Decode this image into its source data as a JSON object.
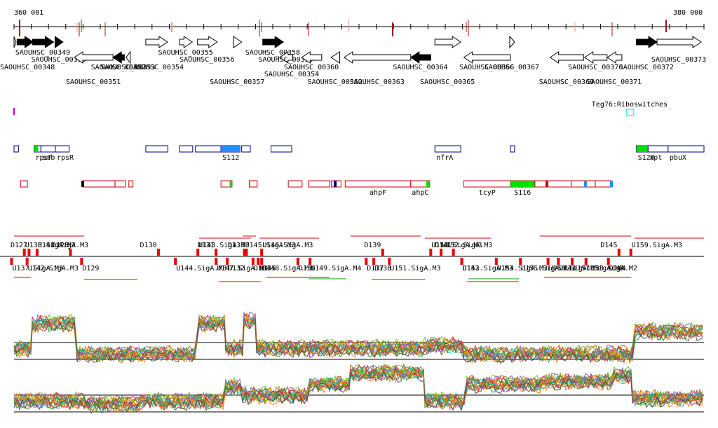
{
  "coords": {
    "start_label": "360 001",
    "end_label": "380 000",
    "start": 360001,
    "end": 380000
  },
  "colors": {
    "axis": "#000000",
    "gene_arrow": "#000000",
    "feature_box": "#000080",
    "red_box": "#cc0000",
    "green": "#00dd00",
    "blue": "#1e90ff",
    "cyan": "#00e5e5",
    "magenta": "#cc00cc"
  },
  "genes": [
    {
      "id": "g1",
      "label": "",
      "s": 360001,
      "e": 360060,
      "strand": "+",
      "filled": false,
      "row": 0
    },
    {
      "id": "g2",
      "label": "SAOUHSC_00348",
      "s": 360090,
      "e": 360560,
      "strand": "+",
      "filled": true,
      "row": 0,
      "label_row": 2
    },
    {
      "id": "g3",
      "label": "SAOUHSC_00349",
      "s": 360540,
      "e": 361150,
      "strand": "+",
      "filled": true,
      "row": 0,
      "label_row": 0
    },
    {
      "id": "g4",
      "label": "SAOUHSC_00350",
      "s": 361190,
      "e": 361420,
      "strand": "+",
      "filled": true,
      "row": 0,
      "label_row": 1
    },
    {
      "id": "g5",
      "label": "SAOUHSC_00351",
      "s": 361750,
      "e": 362870,
      "strand": "-",
      "filled": false,
      "row": 1,
      "label_row": 3
    },
    {
      "id": "g6",
      "label": "SAOUHSC_00352",
      "s": 362870,
      "e": 363200,
      "strand": "-",
      "filled": true,
      "row": 1,
      "label_row": 2
    },
    {
      "id": "g7",
      "label": "SAOUHSC_00353",
      "s": 363250,
      "e": 363370,
      "strand": "-",
      "filled": false,
      "row": 1,
      "label_row": 2
    },
    {
      "id": "g8",
      "label": "SAOUHSC_00354",
      "s": 363820,
      "e": 364450,
      "strand": "+",
      "filled": false,
      "row": 0,
      "label_row": 2
    },
    {
      "id": "g9",
      "label": "SAOUHSC_00355",
      "s": 364800,
      "e": 365170,
      "strand": "+",
      "filled": false,
      "row": 0,
      "label_row": 0
    },
    {
      "id": "g10",
      "label": "SAOUHSC_00356",
      "s": 365320,
      "e": 365890,
      "strand": "+",
      "filled": false,
      "row": 0,
      "label_row": 1
    },
    {
      "id": "g11",
      "label": "SAOUHSC_00357",
      "s": 366360,
      "e": 366600,
      "strand": "+",
      "filled": false,
      "row": 0,
      "label_row": 3
    },
    {
      "id": "g12",
      "label": "SAOUHSC_00358",
      "s": 367210,
      "e": 367810,
      "strand": "+",
      "filled": true,
      "row": 0,
      "label_row": 0
    },
    {
      "id": "g13",
      "label": "SAOUHSC_00359",
      "s": 367700,
      "e": 368080,
      "strand": "-",
      "filled": false,
      "row": 1,
      "label_row": 1
    },
    {
      "id": "g14",
      "label": "SAOUHSC_00360",
      "s": 368340,
      "e": 368920,
      "strand": "-",
      "filled": false,
      "row": 1,
      "label_row": 2
    },
    {
      "id": "g15",
      "label": "SAOUHSC_00362",
      "s": 369190,
      "e": 369440,
      "strand": "-",
      "filled": false,
      "row": 1,
      "label_row": 3
    },
    {
      "id": "g16",
      "label": "SAOUHSC_00363",
      "s": 369570,
      "e": 371500,
      "strand": "-",
      "filled": false,
      "row": 1,
      "label_row": 4
    },
    {
      "id": "g17",
      "label": "SAOUHSC_00364",
      "s": 371500,
      "e": 372080,
      "strand": "-",
      "filled": true,
      "row": 1,
      "label_row": 2
    },
    {
      "id": "g18",
      "label": "SAOUHSC_00365",
      "s": 372200,
      "e": 372950,
      "strand": "+",
      "filled": false,
      "row": 0,
      "label_row": 3
    },
    {
      "id": "g19",
      "label": "SAOUHSC_00366",
      "s": 373040,
      "e": 374390,
      "strand": "-",
      "filled": false,
      "row": 1,
      "label_row": 2
    },
    {
      "id": "g20",
      "label": "SAOUHSC_00367",
      "s": 374370,
      "e": 374510,
      "strand": "+",
      "filled": false,
      "row": 0,
      "label_row": 2
    },
    {
      "id": "g21",
      "label": "SAOUHSC_00369",
      "s": 375540,
      "e": 376510,
      "strand": "-",
      "filled": false,
      "row": 1,
      "label_row": 4
    },
    {
      "id": "g22",
      "label": "SAOUHSC_00370",
      "s": 376540,
      "e": 377190,
      "strand": "-",
      "filled": false,
      "row": 1,
      "label_row": 2
    },
    {
      "id": "g23",
      "label": "SAOUHSC_00371",
      "s": 377200,
      "e": 377620,
      "strand": "-",
      "filled": false,
      "row": 1,
      "label_row": 3
    },
    {
      "id": "g24",
      "label": "SAOUHSC_00372",
      "s": 378040,
      "e": 378640,
      "strand": "+",
      "filled": true,
      "row": 0,
      "label_row": 2
    },
    {
      "id": "g25",
      "label": "SAOUHSC_00373",
      "s": 378640,
      "e": 379920,
      "strand": "+",
      "filled": false,
      "row": 0,
      "label_row": 1
    }
  ],
  "extra_gene_labels": [
    {
      "label": "SAOUHSC_00354",
      "s": 368060,
      "label_row": 3
    }
  ],
  "riboswitch": {
    "label": "Teg76:Riboswitches",
    "s": 377760,
    "e": 378000
  },
  "blue_features": [
    {
      "s": 360001,
      "e": 360130,
      "label": ""
    },
    {
      "s": 360580,
      "e": 360780,
      "label": "rpsF",
      "fill": "#00dd00",
      "fill_w": 100
    },
    {
      "s": 360780,
      "e": 361200,
      "label": "ssb"
    },
    {
      "s": 361200,
      "e": 361600,
      "label": "rpsR"
    },
    {
      "s": 363820,
      "e": 364460,
      "label": ""
    },
    {
      "s": 364800,
      "e": 365180,
      "label": ""
    },
    {
      "s": 365260,
      "e": 366000,
      "label": ""
    },
    {
      "s": 366000,
      "e": 366550,
      "label": "S112",
      "fill": "#1e90ff"
    },
    {
      "s": 366600,
      "e": 366850,
      "label": ""
    },
    {
      "s": 367450,
      "e": 368050,
      "label": ""
    },
    {
      "s": 372200,
      "e": 372950,
      "label": "nfrA"
    },
    {
      "s": 374390,
      "e": 374510,
      "label": ""
    },
    {
      "s": 378040,
      "e": 378380,
      "label": "S120",
      "fill": "#00dd00"
    },
    {
      "s": 378380,
      "e": 378960,
      "label": "xpt"
    },
    {
      "s": 378960,
      "e": 380000,
      "label": "pbuX"
    }
  ],
  "red_features": [
    {
      "s": 360190,
      "e": 360390,
      "label": ""
    },
    {
      "s": 362000,
      "e": 362930,
      "label": ""
    },
    {
      "s": 362930,
      "e": 363230,
      "label": ""
    },
    {
      "s": 363330,
      "e": 363450,
      "label": ""
    },
    {
      "s": 366000,
      "e": 366320,
      "label": "",
      "fill": "#00dd00",
      "fill_from": 366250
    },
    {
      "s": 366820,
      "e": 367050,
      "label": ""
    },
    {
      "s": 367950,
      "e": 368350,
      "label": ""
    },
    {
      "s": 368540,
      "e": 369150,
      "label": ""
    },
    {
      "s": 369200,
      "e": 369480,
      "label": ""
    },
    {
      "s": 369600,
      "e": 371500,
      "label": "ahpF"
    },
    {
      "s": 371500,
      "e": 372050,
      "label": "ahpC",
      "fill": "#00dd00",
      "fill_from": 371950
    },
    {
      "s": 373040,
      "e": 374390,
      "label": "tcyP"
    },
    {
      "s": 374390,
      "e": 375090,
      "label": "S116",
      "fill": "#00dd00"
    },
    {
      "s": 375100,
      "e": 376150,
      "label": ""
    },
    {
      "s": 376150,
      "e": 376850,
      "label": ""
    },
    {
      "s": 376850,
      "e": 377310,
      "label": ""
    }
  ],
  "upper_track_labels": [
    {
      "text": "D127",
      "s": 359900
    },
    {
      "text": "U138.SigA.M3",
      "s": 360320
    },
    {
      "text": "U140.SigA.M3",
      "s": 360690
    },
    {
      "text": "D128",
      "s": 361100
    },
    {
      "text": "D130",
      "s": 363650
    },
    {
      "text": "U143.SigA.M3",
      "s": 365350
    },
    {
      "text": "D131",
      "s": 365320
    },
    {
      "text": "D133",
      "s": 366200
    },
    {
      "text": "U145.SigA.M3",
      "s": 366700
    },
    {
      "text": "U146.SigA.M3",
      "s": 367200
    },
    {
      "text": "D139",
      "s": 370150
    },
    {
      "text": "U150.SigA.M3",
      "s": 372100
    },
    {
      "text": "U152.SigA.M3",
      "s": 372400
    },
    {
      "text": "D141",
      "s": 372200
    },
    {
      "text": "D145",
      "s": 377000
    },
    {
      "text": "U159.SigA.M3",
      "s": 377900
    }
  ],
  "lower_track_labels": [
    {
      "text": "U137.SigA.M3",
      "s": 359950
    },
    {
      "text": "U142.SigA.M3",
      "s": 360400
    },
    {
      "text": "D129",
      "s": 361980
    },
    {
      "text": "U144.SigA.M3",
      "s": 364700
    },
    {
      "text": "U147.SigA.M3",
      "s": 365880
    },
    {
      "text": "D132",
      "s": 366200
    },
    {
      "text": "D134",
      "s": 366950
    },
    {
      "text": "D135",
      "s": 367100
    },
    {
      "text": "U148.SigA.M3",
      "s": 367200
    },
    {
      "text": "D136",
      "s": 368250
    },
    {
      "text": "U149.SigA.M4",
      "s": 368600
    },
    {
      "text": "D137",
      "s": 370230
    },
    {
      "text": "D138",
      "s": 370450
    },
    {
      "text": "U151.SigA.M3",
      "s": 370900
    },
    {
      "text": "D142",
      "s": 373000
    },
    {
      "text": "U153.SigA.M3",
      "s": 373000
    },
    {
      "text": "U154.SigA.M3",
      "s": 374000
    },
    {
      "text": "U155.SigA.M3",
      "s": 374700
    },
    {
      "text": "D143",
      "s": 375800
    },
    {
      "text": "U156.SigA.M3",
      "s": 375500
    },
    {
      "text": "U157.SigA.M3",
      "s": 376200
    },
    {
      "text": "U158.SigA.M2",
      "s": 376600
    },
    {
      "text": "D144",
      "s": 377250
    }
  ]
}
